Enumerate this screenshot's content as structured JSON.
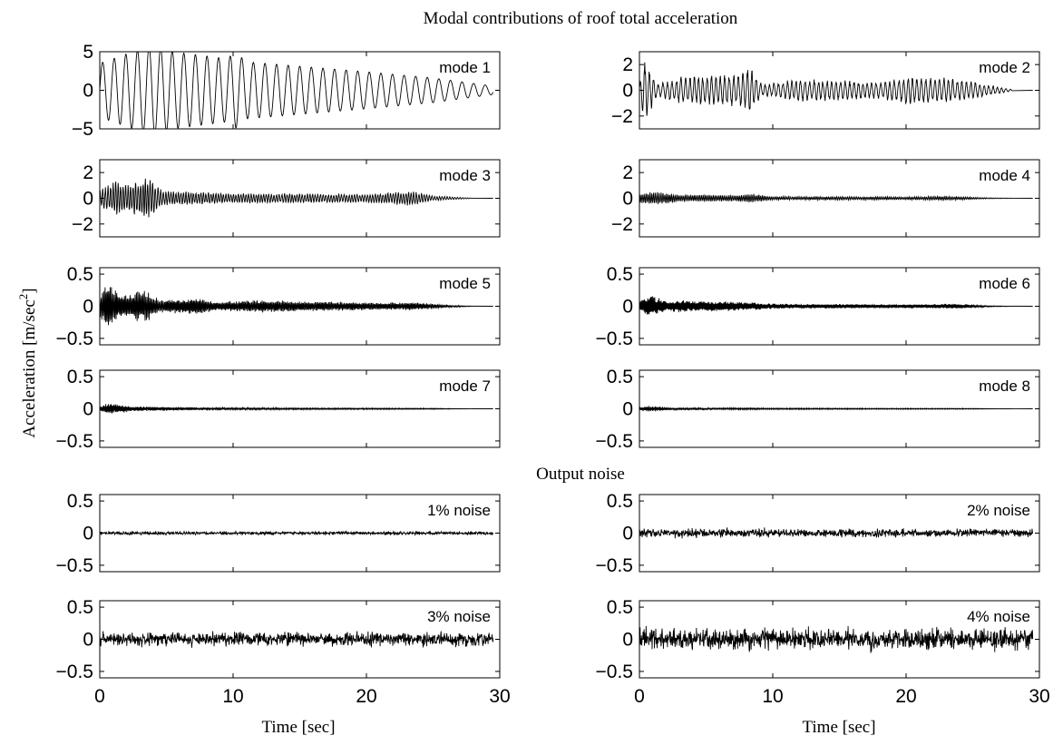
{
  "figure": {
    "title": "Modal contributions of roof total acceleration",
    "section_title": "Output noise",
    "ylabel_main": "Acceleration [m/sec",
    "ylabel_sup": "2",
    "ylabel_close": "]",
    "xlabel": "Time [sec]"
  },
  "chart_data": [
    {
      "type": "line",
      "label": "mode 1",
      "row": 0,
      "col": 0,
      "xlim": [
        0,
        30
      ],
      "ylim": [
        -5,
        5
      ],
      "yticks": [
        -5,
        0,
        5
      ],
      "yticklabels": [
        "−5",
        "0",
        "5"
      ],
      "xticks": [
        0,
        10,
        20,
        30
      ],
      "show_xticklabels": false,
      "xticklabels": [
        "0",
        "10",
        "20",
        "30"
      ],
      "signal": {
        "kind": "sine",
        "freq": 1.15,
        "amp_env": [
          [
            0,
            3.5
          ],
          [
            2.0,
            4.7
          ],
          [
            4.0,
            5.8
          ],
          [
            5.5,
            5.0
          ],
          [
            9.5,
            4.1
          ],
          [
            10.2,
            4.9
          ],
          [
            11,
            3.7
          ],
          [
            20,
            2.4
          ],
          [
            25,
            1.6
          ],
          [
            29.5,
            0.55
          ]
        ],
        "end": 29.5
      }
    },
    {
      "type": "line",
      "label": "mode 2",
      "row": 0,
      "col": 1,
      "xlim": [
        0,
        30
      ],
      "ylim": [
        -3,
        3
      ],
      "yticks": [
        -2,
        0,
        2
      ],
      "yticklabels": [
        "−2",
        "0",
        "2"
      ],
      "xticks": [
        0,
        10,
        20,
        30
      ],
      "show_xticklabels": false,
      "xticklabels": [
        "0",
        "10",
        "20",
        "30"
      ],
      "signal": {
        "kind": "burst",
        "freq": 3.0,
        "amp_env": [
          [
            0,
            0.5
          ],
          [
            0.4,
            2.6
          ],
          [
            1.3,
            0.5
          ],
          [
            3.0,
            1.1
          ],
          [
            7.5,
            1.3
          ],
          [
            8.3,
            1.9
          ],
          [
            9.2,
            0.5
          ],
          [
            12,
            0.9
          ],
          [
            18,
            0.7
          ],
          [
            20,
            1.1
          ],
          [
            23,
            1.0
          ],
          [
            25,
            0.7
          ],
          [
            28,
            0.05
          ]
        ],
        "end": 28.0,
        "flat_to": 29.5
      }
    },
    {
      "type": "line",
      "label": "mode 3",
      "row": 1,
      "col": 0,
      "xlim": [
        0,
        30
      ],
      "ylim": [
        -3,
        3
      ],
      "yticks": [
        -2,
        0,
        2
      ],
      "yticklabels": [
        "−2",
        "0",
        "2"
      ],
      "xticks": [
        0,
        10,
        20,
        30
      ],
      "show_xticklabels": false,
      "xticklabels": [
        "0",
        "10",
        "20",
        "30"
      ],
      "signal": {
        "kind": "burst",
        "freq": 5.2,
        "amp_env": [
          [
            0,
            0.6
          ],
          [
            1.2,
            1.5
          ],
          [
            2.0,
            1.1
          ],
          [
            3.5,
            1.7
          ],
          [
            4.8,
            0.6
          ],
          [
            10,
            0.4
          ],
          [
            20,
            0.35
          ],
          [
            23.5,
            0.6
          ],
          [
            25,
            0.2
          ],
          [
            28,
            0.02
          ]
        ],
        "end": 28.0,
        "flat_to": 29.5
      }
    },
    {
      "type": "line",
      "label": "mode 4",
      "row": 1,
      "col": 1,
      "xlim": [
        0,
        30
      ],
      "ylim": [
        -3,
        3
      ],
      "yticks": [
        -2,
        0,
        2
      ],
      "yticklabels": [
        "−2",
        "0",
        "2"
      ],
      "xticks": [
        0,
        10,
        20,
        30
      ],
      "show_xticklabels": false,
      "xticklabels": [
        "0",
        "10",
        "20",
        "30"
      ],
      "signal": {
        "kind": "burst",
        "freq": 7.6,
        "amp_env": [
          [
            0,
            0.4
          ],
          [
            1.0,
            0.55
          ],
          [
            3.0,
            0.3
          ],
          [
            7.5,
            0.25
          ],
          [
            8.2,
            0.4
          ],
          [
            10,
            0.15
          ],
          [
            20,
            0.12
          ],
          [
            23,
            0.18
          ],
          [
            26,
            0.05
          ],
          [
            28,
            0.01
          ]
        ],
        "end": 28.0,
        "flat_to": 29.5
      }
    },
    {
      "type": "line",
      "label": "mode 5",
      "row": 2,
      "col": 0,
      "xlim": [
        0,
        30
      ],
      "ylim": [
        -0.6,
        0.6
      ],
      "yticks": [
        -0.5,
        0,
        0.5
      ],
      "yticklabels": [
        "−0.5",
        "0",
        "0.5"
      ],
      "xticks": [
        0,
        10,
        20,
        30
      ],
      "show_xticklabels": false,
      "xticklabels": [
        "0",
        "10",
        "20",
        "30"
      ],
      "signal": {
        "kind": "burst",
        "freq": 10.3,
        "amp_env": [
          [
            0,
            0.15
          ],
          [
            0.6,
            0.42
          ],
          [
            1.5,
            0.2
          ],
          [
            3.5,
            0.25
          ],
          [
            4.5,
            0.1
          ],
          [
            7.5,
            0.14
          ],
          [
            8.5,
            0.07
          ],
          [
            12,
            0.1
          ],
          [
            20,
            0.06
          ],
          [
            24,
            0.06
          ],
          [
            26,
            0.02
          ],
          [
            28,
            0.003
          ]
        ],
        "end": 28.0,
        "flat_to": 29.5
      }
    },
    {
      "type": "line",
      "label": "mode 6",
      "row": 2,
      "col": 1,
      "xlim": [
        0,
        30
      ],
      "ylim": [
        -0.6,
        0.6
      ],
      "yticks": [
        -0.5,
        0,
        0.5
      ],
      "yticklabels": [
        "−0.5",
        "0",
        "0.5"
      ],
      "xticks": [
        0,
        10,
        20,
        30
      ],
      "show_xticklabels": false,
      "xticklabels": [
        "0",
        "10",
        "20",
        "30"
      ],
      "signal": {
        "kind": "burst",
        "freq": 12.7,
        "amp_env": [
          [
            0,
            0.08
          ],
          [
            0.7,
            0.2
          ],
          [
            2.0,
            0.08
          ],
          [
            3.2,
            0.1
          ],
          [
            8.0,
            0.07
          ],
          [
            10,
            0.04
          ],
          [
            20,
            0.03
          ],
          [
            24,
            0.04
          ],
          [
            26,
            0.01
          ],
          [
            28,
            0.002
          ]
        ],
        "end": 28.0,
        "flat_to": 29.5
      }
    },
    {
      "type": "line",
      "label": "mode 7",
      "row": 3,
      "col": 0,
      "xlim": [
        0,
        30
      ],
      "ylim": [
        -0.6,
        0.6
      ],
      "yticks": [
        -0.5,
        0,
        0.5
      ],
      "yticklabels": [
        "−0.5",
        "0",
        "0.5"
      ],
      "xticks": [
        0,
        10,
        20,
        30
      ],
      "show_xticklabels": false,
      "xticklabels": [
        "0",
        "10",
        "20",
        "30"
      ],
      "signal": {
        "kind": "burst",
        "freq": 14.9,
        "amp_env": [
          [
            0,
            0.04
          ],
          [
            0.8,
            0.1
          ],
          [
            2.5,
            0.04
          ],
          [
            8,
            0.02
          ],
          [
            15,
            0.012
          ],
          [
            25,
            0.008
          ],
          [
            28,
            0.001
          ]
        ],
        "end": 28.0,
        "flat_to": 29.5
      }
    },
    {
      "type": "line",
      "label": "mode 8",
      "row": 3,
      "col": 1,
      "xlim": [
        0,
        30
      ],
      "ylim": [
        -0.6,
        0.6
      ],
      "yticks": [
        -0.5,
        0,
        0.5
      ],
      "yticklabels": [
        "−0.5",
        "0",
        "0.5"
      ],
      "xticks": [
        0,
        10,
        20,
        30
      ],
      "show_xticklabels": false,
      "xticklabels": [
        "0",
        "10",
        "20",
        "30"
      ],
      "signal": {
        "kind": "burst",
        "freq": 16.6,
        "amp_env": [
          [
            0,
            0.03
          ],
          [
            0.7,
            0.05
          ],
          [
            2.5,
            0.02
          ],
          [
            10,
            0.01
          ],
          [
            25,
            0.006
          ],
          [
            28,
            0.001
          ]
        ],
        "end": 28.0,
        "flat_to": 29.5
      }
    },
    {
      "type": "line",
      "label": "1% noise",
      "row": 4,
      "col": 0,
      "xlim": [
        0,
        30
      ],
      "ylim": [
        -0.6,
        0.6
      ],
      "yticks": [
        -0.5,
        0,
        0.5
      ],
      "yticklabels": [
        "−0.5",
        "0",
        "0.5"
      ],
      "xticks": [
        0,
        10,
        20,
        30
      ],
      "show_xticklabels": false,
      "xticklabels": [
        "0",
        "10",
        "20",
        "30"
      ],
      "signal": {
        "kind": "noise",
        "std": 0.012,
        "end": 29.5
      }
    },
    {
      "type": "line",
      "label": "2% noise",
      "row": 4,
      "col": 1,
      "xlim": [
        0,
        30
      ],
      "ylim": [
        -0.6,
        0.6
      ],
      "yticks": [
        -0.5,
        0,
        0.5
      ],
      "yticklabels": [
        "−0.5",
        "0",
        "0.5"
      ],
      "xticks": [
        0,
        10,
        20,
        30
      ],
      "show_xticklabels": false,
      "xticklabels": [
        "0",
        "10",
        "20",
        "30"
      ],
      "signal": {
        "kind": "noise",
        "std": 0.03,
        "end": 29.5
      }
    },
    {
      "type": "line",
      "label": "3% noise",
      "row": 5,
      "col": 0,
      "xlim": [
        0,
        30
      ],
      "ylim": [
        -0.6,
        0.6
      ],
      "yticks": [
        -0.5,
        0,
        0.5
      ],
      "yticklabels": [
        "−0.5",
        "0",
        "0.5"
      ],
      "xticks": [
        0,
        10,
        20,
        30
      ],
      "show_xticklabels": true,
      "xticklabels": [
        "0",
        "10",
        "20",
        "30"
      ],
      "signal": {
        "kind": "noise",
        "std": 0.05,
        "end": 29.5
      }
    },
    {
      "type": "line",
      "label": "4% noise",
      "row": 5,
      "col": 1,
      "xlim": [
        0,
        30
      ],
      "ylim": [
        -0.6,
        0.6
      ],
      "yticks": [
        -0.5,
        0,
        0.5
      ],
      "yticklabels": [
        "−0.5",
        "0",
        "0.5"
      ],
      "xticks": [
        0,
        10,
        20,
        30
      ],
      "show_xticklabels": true,
      "xticklabels": [
        "0",
        "10",
        "20",
        "30"
      ],
      "signal": {
        "kind": "noise",
        "std": 0.075,
        "end": 29.5
      }
    }
  ]
}
